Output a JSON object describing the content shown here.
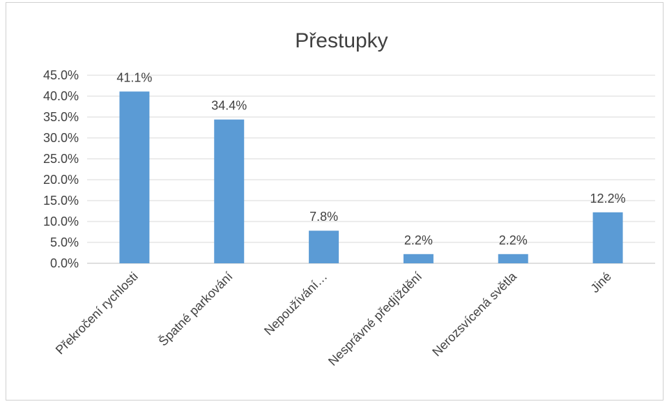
{
  "chart_data": {
    "type": "bar",
    "title": "Přestupky",
    "categories": [
      "Překročení rychlosti",
      "Špatné parkování",
      "Nepoužívání…",
      "Nesprávné předjíždění",
      "Nerozsvícená světla",
      "Jiné"
    ],
    "values": [
      41.1,
      34.4,
      7.8,
      2.2,
      2.2,
      12.2
    ],
    "data_labels": [
      "41.1%",
      "34.4%",
      "7.8%",
      "2.2%",
      "2.2%",
      "12.2%"
    ],
    "ylim": [
      0,
      45
    ],
    "yticks": [
      0,
      5,
      10,
      15,
      20,
      25,
      30,
      35,
      40,
      45
    ],
    "ytick_labels": [
      "0.0%",
      "5.0%",
      "10.0%",
      "15.0%",
      "20.0%",
      "25.0%",
      "30.0%",
      "35.0%",
      "40.0%",
      "45.0%"
    ],
    "xlabel": "",
    "ylabel": "",
    "grid": true,
    "legend": "none",
    "colors": {
      "bar": "#5b9bd5",
      "grid": "#d9d9d9",
      "axis": "#bfbfbf",
      "text": "#404040"
    }
  }
}
